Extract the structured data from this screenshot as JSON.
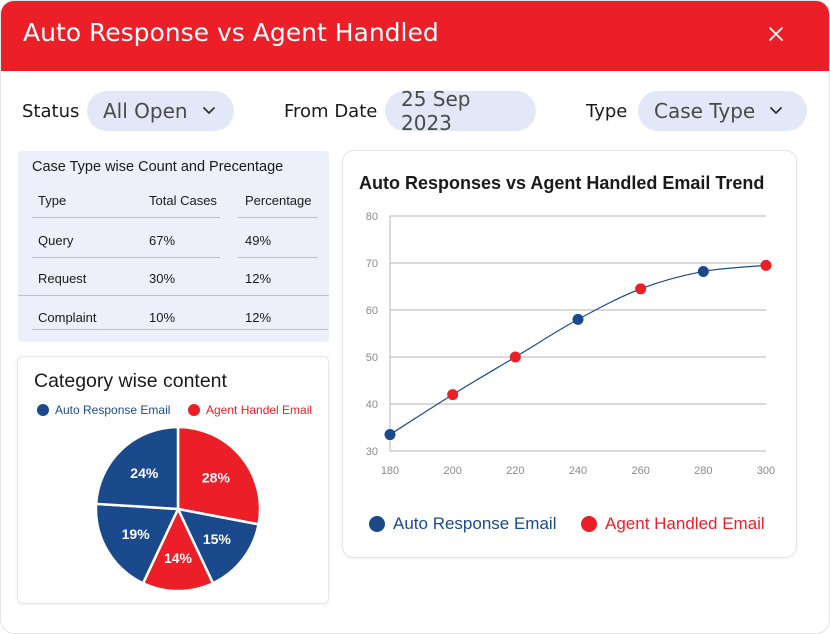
{
  "window": {
    "title": "Auto Response vs Agent Handled"
  },
  "filters": {
    "status": {
      "label": "Status",
      "value": "All Open"
    },
    "from_date": {
      "label": "From Date",
      "value": "25 Sep 2023"
    },
    "type": {
      "label": "Type",
      "value": "Case Type"
    }
  },
  "table": {
    "title": "Case Type wise Count and Precentage",
    "headers": [
      "Type",
      "Total Cases",
      "Percentage"
    ],
    "rows": [
      [
        "Query",
        "67%",
        "49%"
      ],
      [
        "Request",
        "30%",
        "12%"
      ],
      [
        "Complaint",
        "10%",
        "12%"
      ]
    ]
  },
  "pie": {
    "title": "Category wise content",
    "legend": [
      "Auto Response Email",
      "Agent Handel Email"
    ]
  },
  "line": {
    "title": "Auto Responses vs Agent Handled Email Trend",
    "legend": [
      "Auto Response Email",
      "Agent Handled Email"
    ]
  },
  "colors": {
    "brand_red": "#ec1e27",
    "navy": "#1b4a8c",
    "red": "#ec1e27",
    "pill_bg": "#e2e8f7"
  },
  "icons": {
    "close": "close-icon",
    "dropdown": "chevron-down-icon"
  },
  "chart_data": [
    {
      "type": "pie",
      "title": "Category wise content",
      "slices": [
        {
          "label": "28%",
          "value": 28,
          "series": "Agent Handel Email",
          "color": "#ec1e27"
        },
        {
          "label": "15%",
          "value": 15,
          "series": "Auto Response Email",
          "color": "#1b4a8c"
        },
        {
          "label": "14%",
          "value": 14,
          "series": "Agent Handel Email",
          "color": "#ec1e27"
        },
        {
          "label": "19%",
          "value": 19,
          "series": "Auto Response Email",
          "color": "#1b4a8c"
        },
        {
          "label": "24%",
          "value": 24,
          "series": "Auto Response Email",
          "color": "#1b4a8c"
        }
      ]
    },
    {
      "type": "line",
      "title": "Auto Responses vs Agent Handled Email Trend",
      "x": [
        180,
        200,
        220,
        240,
        260,
        280,
        300
      ],
      "y": [
        33.5,
        42,
        50,
        58,
        64.5,
        68.2,
        69.5
      ],
      "point_series": [
        "Auto Response Email",
        "Agent Handled Email",
        "Agent Handled Email",
        "Auto Response Email",
        "Agent Handled Email",
        "Auto Response Email",
        "Agent Handled Email"
      ],
      "xticks": [
        "180",
        "200",
        "220",
        "240",
        "260",
        "280",
        "300"
      ],
      "yticks": [
        "30",
        "40",
        "50",
        "60",
        "70",
        "80"
      ],
      "xlim": [
        180,
        300
      ],
      "ylim": [
        30,
        80
      ],
      "grid": true,
      "legend_position": "bottom"
    }
  ]
}
